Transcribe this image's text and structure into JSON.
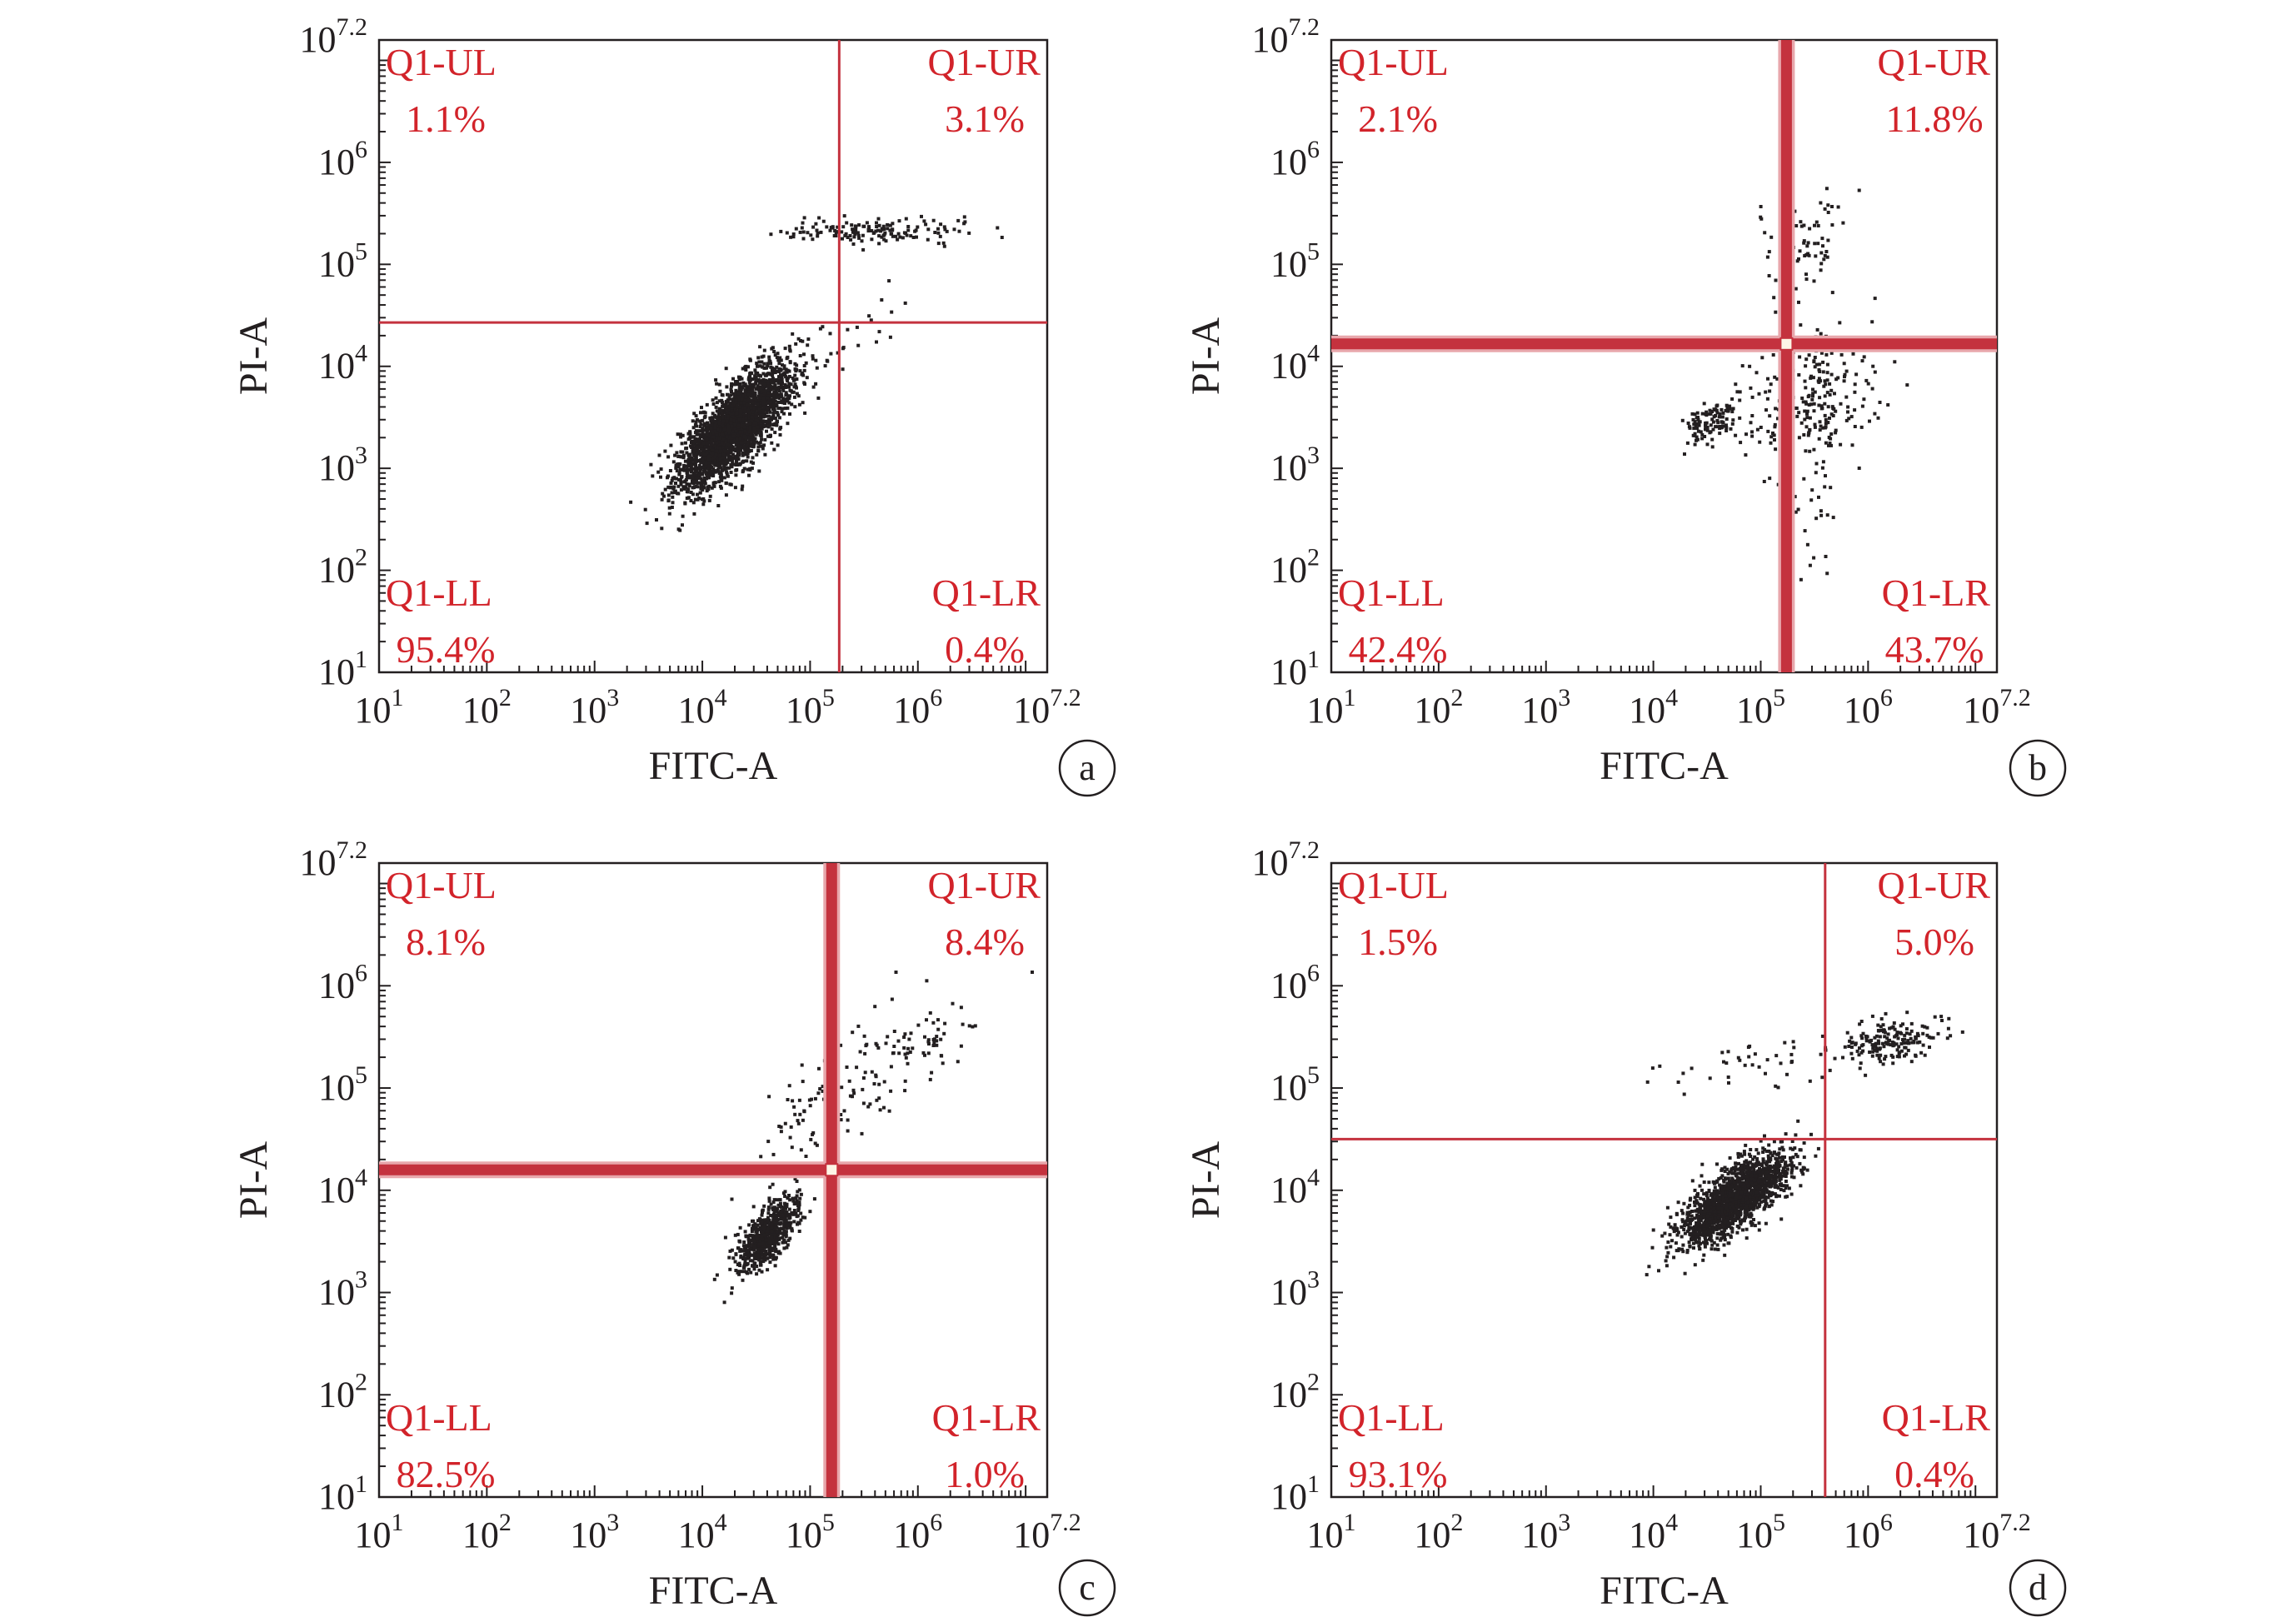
{
  "figure": {
    "panels": [
      {
        "letter": "a",
        "xlabel": "FITC-A",
        "ylabel": "PI-A",
        "quadrants": {
          "ul": {
            "label": "Q1-UL",
            "percent": "1.1%"
          },
          "ur": {
            "label": "Q1-UR",
            "percent": "3.1%"
          },
          "ll": {
            "label": "Q1-LL",
            "percent": "95.4%"
          },
          "lr": {
            "label": "Q1-LR",
            "percent": "0.4%"
          }
        }
      },
      {
        "letter": "b",
        "xlabel": "FITC-A",
        "ylabel": "PI-A",
        "quadrants": {
          "ul": {
            "label": "Q1-UL",
            "percent": "2.1%"
          },
          "ur": {
            "label": "Q1-UR",
            "percent": "11.8%"
          },
          "ll": {
            "label": "Q1-LL",
            "percent": "42.4%"
          },
          "lr": {
            "label": "Q1-LR",
            "percent": "43.7%"
          }
        }
      },
      {
        "letter": "c",
        "xlabel": "FITC-A",
        "ylabel": "PI-A",
        "quadrants": {
          "ul": {
            "label": "Q1-UL",
            "percent": "8.1%"
          },
          "ur": {
            "label": "Q1-UR",
            "percent": "8.4%"
          },
          "ll": {
            "label": "Q1-LL",
            "percent": "82.5%"
          },
          "lr": {
            "label": "Q1-LR",
            "percent": "1.0%"
          }
        }
      },
      {
        "letter": "d",
        "xlabel": "FITC-A",
        "ylabel": "PI-A",
        "quadrants": {
          "ul": {
            "label": "Q1-UL",
            "percent": "1.5%"
          },
          "ur": {
            "label": "Q1-UR",
            "percent": "5.0%"
          },
          "ll": {
            "label": "Q1-LL",
            "percent": "93.1%"
          },
          "lr": {
            "label": "Q1-LR",
            "percent": "0.4%"
          }
        }
      }
    ]
  },
  "chart_data": [
    {
      "type": "scatter",
      "panel": "a",
      "xlabel": "FITC-A",
      "ylabel": "PI-A",
      "x_scale": "log",
      "y_scale": "log",
      "xlim": [
        1,
        7.2
      ],
      "ylim": [
        1,
        7.2
      ],
      "x_ticks": [
        {
          "base": "10",
          "exp": "1"
        },
        {
          "base": "10",
          "exp": "2"
        },
        {
          "base": "10",
          "exp": "3"
        },
        {
          "base": "10",
          "exp": "4"
        },
        {
          "base": "10",
          "exp": "5"
        },
        {
          "base": "10",
          "exp": "6"
        },
        {
          "base": "10",
          "exp": "7.2"
        }
      ],
      "y_ticks": [
        {
          "base": "10",
          "exp": "1"
        },
        {
          "base": "10",
          "exp": "2"
        },
        {
          "base": "10",
          "exp": "3"
        },
        {
          "base": "10",
          "exp": "4"
        },
        {
          "base": "10",
          "exp": "5"
        },
        {
          "base": "10",
          "exp": "6"
        },
        {
          "base": "10",
          "exp": "7.2"
        }
      ],
      "gate": {
        "x": 5.27,
        "y": 4.43
      },
      "gate_style": "thin",
      "series_color": "#231f20",
      "gate_color": "#c4323e",
      "populations": [
        {
          "mx": 4.3,
          "my": 3.4,
          "sx": 0.26,
          "sy": 0.3,
          "rho": 0.75,
          "n": 2600
        },
        {
          "mx": 5.65,
          "my": 5.32,
          "sx": 0.42,
          "sy": 0.06,
          "rho": 0.1,
          "n": 150
        },
        {
          "mx": 5.3,
          "my": 4.25,
          "sx": 0.45,
          "sy": 0.45,
          "rho": 0.85,
          "n": 35
        }
      ],
      "quadrant_percent": {
        "UL": 1.1,
        "UR": 3.1,
        "LL": 95.4,
        "LR": 0.4
      }
    },
    {
      "type": "scatter",
      "panel": "b",
      "xlabel": "FITC-A",
      "ylabel": "PI-A",
      "x_scale": "log",
      "y_scale": "log",
      "xlim": [
        1,
        7.2
      ],
      "ylim": [
        1,
        7.2
      ],
      "x_ticks": [
        {
          "base": "10",
          "exp": "1"
        },
        {
          "base": "10",
          "exp": "2"
        },
        {
          "base": "10",
          "exp": "3"
        },
        {
          "base": "10",
          "exp": "4"
        },
        {
          "base": "10",
          "exp": "5"
        },
        {
          "base": "10",
          "exp": "6"
        },
        {
          "base": "10",
          "exp": "7.2"
        }
      ],
      "y_ticks": [
        {
          "base": "10",
          "exp": "1"
        },
        {
          "base": "10",
          "exp": "2"
        },
        {
          "base": "10",
          "exp": "3"
        },
        {
          "base": "10",
          "exp": "4"
        },
        {
          "base": "10",
          "exp": "5"
        },
        {
          "base": "10",
          "exp": "6"
        },
        {
          "base": "10",
          "exp": "7.2"
        }
      ],
      "gate": {
        "x": 5.24,
        "y": 4.22
      },
      "gate_style": "thick",
      "series_color": "#231f20",
      "gate_color": "#c4323e",
      "populations": [
        {
          "mx": 4.55,
          "my": 3.45,
          "sx": 0.12,
          "sy": 0.1,
          "rho": 0.3,
          "n": 110
        },
        {
          "mx": 5.45,
          "my": 3.65,
          "sx": 0.3,
          "sy": 0.35,
          "rho": 0.2,
          "n": 260
        },
        {
          "mx": 5.4,
          "my": 5.2,
          "sx": 0.2,
          "sy": 0.3,
          "rho": 0.3,
          "n": 70
        },
        {
          "mx": 5.5,
          "my": 2.6,
          "sx": 0.12,
          "sy": 0.4,
          "rho": 0.0,
          "n": 25
        }
      ],
      "quadrant_percent": {
        "UL": 2.1,
        "UR": 11.8,
        "LL": 42.4,
        "LR": 43.7
      }
    },
    {
      "type": "scatter",
      "panel": "c",
      "xlabel": "FITC-A",
      "ylabel": "PI-A",
      "x_scale": "log",
      "y_scale": "log",
      "xlim": [
        1,
        7.2
      ],
      "ylim": [
        1,
        7.2
      ],
      "x_ticks": [
        {
          "base": "10",
          "exp": "1"
        },
        {
          "base": "10",
          "exp": "2"
        },
        {
          "base": "10",
          "exp": "3"
        },
        {
          "base": "10",
          "exp": "4"
        },
        {
          "base": "10",
          "exp": "5"
        },
        {
          "base": "10",
          "exp": "6"
        },
        {
          "base": "10",
          "exp": "7.2"
        }
      ],
      "y_ticks": [
        {
          "base": "10",
          "exp": "1"
        },
        {
          "base": "10",
          "exp": "2"
        },
        {
          "base": "10",
          "exp": "3"
        },
        {
          "base": "10",
          "exp": "4"
        },
        {
          "base": "10",
          "exp": "5"
        },
        {
          "base": "10",
          "exp": "6"
        },
        {
          "base": "10",
          "exp": "7.2"
        }
      ],
      "gate": {
        "x": 5.2,
        "y": 4.2
      },
      "gate_style": "thick",
      "series_color": "#231f20",
      "gate_color": "#c4323e",
      "populations": [
        {
          "mx": 4.6,
          "my": 3.55,
          "sx": 0.15,
          "sy": 0.18,
          "rho": 0.7,
          "n": 650
        },
        {
          "mx": 5.3,
          "my": 4.9,
          "sx": 0.45,
          "sy": 0.45,
          "rho": 0.75,
          "n": 140
        },
        {
          "mx": 6.15,
          "my": 5.45,
          "sx": 0.2,
          "sy": 0.15,
          "rho": 0.3,
          "n": 40
        }
      ],
      "quadrant_percent": {
        "UL": 8.1,
        "UR": 8.4,
        "LL": 82.5,
        "LR": 1.0
      }
    },
    {
      "type": "scatter",
      "panel": "d",
      "xlabel": "FITC-A",
      "ylabel": "PI-A",
      "x_scale": "log",
      "y_scale": "log",
      "xlim": [
        1,
        7.2
      ],
      "ylim": [
        1,
        7.2
      ],
      "x_ticks": [
        {
          "base": "10",
          "exp": "1"
        },
        {
          "base": "10",
          "exp": "2"
        },
        {
          "base": "10",
          "exp": "3"
        },
        {
          "base": "10",
          "exp": "4"
        },
        {
          "base": "10",
          "exp": "5"
        },
        {
          "base": "10",
          "exp": "6"
        },
        {
          "base": "10",
          "exp": "7.2"
        }
      ],
      "y_ticks": [
        {
          "base": "10",
          "exp": "1"
        },
        {
          "base": "10",
          "exp": "2"
        },
        {
          "base": "10",
          "exp": "3"
        },
        {
          "base": "10",
          "exp": "4"
        },
        {
          "base": "10",
          "exp": "5"
        },
        {
          "base": "10",
          "exp": "6"
        },
        {
          "base": "10",
          "exp": "7.2"
        }
      ],
      "gate": {
        "x": 5.6,
        "y": 4.5
      },
      "gate_style": "thin",
      "series_color": "#231f20",
      "gate_color": "#c4323e",
      "populations": [
        {
          "mx": 4.75,
          "my": 3.9,
          "sx": 0.26,
          "sy": 0.23,
          "rho": 0.75,
          "n": 1700
        },
        {
          "mx": 6.2,
          "my": 5.45,
          "sx": 0.25,
          "sy": 0.12,
          "rho": 0.3,
          "n": 180
        },
        {
          "mx": 4.9,
          "my": 5.25,
          "sx": 0.55,
          "sy": 0.15,
          "rho": 0.5,
          "n": 40
        }
      ],
      "quadrant_percent": {
        "UL": 1.5,
        "UR": 5.0,
        "LL": 93.1,
        "LR": 0.4
      }
    }
  ]
}
